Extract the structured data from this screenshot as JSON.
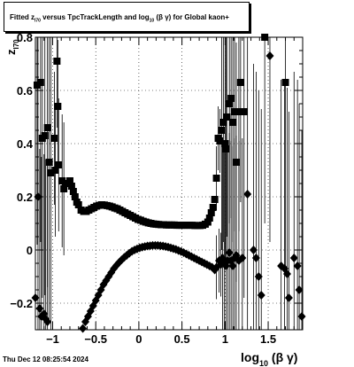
{
  "title": {
    "prefix": "Fitted  z",
    "z_sub": "I70",
    "middle": "  versus TpcTrackLength and log",
    "log_sub": "10",
    "suffix": " (β  γ) for Global kaon+"
  },
  "timestamp": "Thu Dec 12 08:25:54 2024",
  "chart_data": {
    "type": "scatter",
    "title": "Fitted z_I70 versus TpcTrackLength and log10(βγ) for Global kaon+",
    "xlabel": "log10 (β γ)",
    "ylabel": "z_I70",
    "xlim": [
      -1.2,
      1.9
    ],
    "ylim": [
      -0.3,
      0.8
    ],
    "grid": true,
    "x_ticks": [
      -1,
      -0.5,
      0,
      0.5,
      1,
      1.5
    ],
    "x_tick_labels": [
      "−1",
      "−0.5",
      "0",
      "0.5",
      "1",
      "1.5"
    ],
    "y_ticks": [
      -0.2,
      0,
      0.2,
      0.4,
      0.6,
      0.8
    ],
    "y_tick_labels": [
      "−0.2",
      "0",
      "0.2",
      "0.4",
      "0.6",
      "0.8"
    ],
    "series": [
      {
        "marker": "square",
        "color": "#000000",
        "points": [
          [
            -1.18,
            0.62
          ],
          [
            -1.14,
            0.63
          ],
          [
            -1.12,
            0.42
          ],
          [
            -1.09,
            0.43
          ],
          [
            -1.06,
            0.46
          ],
          [
            -1.04,
            0.33
          ],
          [
            -1.02,
            0.29
          ],
          [
            -0.98,
            0.42
          ],
          [
            -0.97,
            0.3
          ],
          [
            -0.95,
            0.71
          ],
          [
            -0.94,
            0.54
          ],
          [
            -0.93,
            0.32
          ],
          [
            -0.89,
            0.26
          ],
          [
            -0.87,
            0.23
          ],
          [
            -0.85,
            0.25
          ],
          [
            -0.8,
            0.26
          ],
          [
            -0.78,
            0.24
          ],
          [
            -0.76,
            0.22
          ],
          [
            -0.74,
            0.2
          ],
          [
            -0.72,
            0.18
          ],
          [
            -0.7,
            0.17
          ],
          [
            -0.67,
            0.15
          ],
          [
            -0.64,
            0.145
          ],
          [
            -0.61,
            0.145
          ],
          [
            -0.58,
            0.15
          ],
          [
            -0.55,
            0.155
          ],
          [
            -0.52,
            0.16
          ],
          [
            -0.49,
            0.165
          ],
          [
            -0.46,
            0.168
          ],
          [
            -0.43,
            0.17
          ],
          [
            -0.4,
            0.169
          ],
          [
            -0.37,
            0.167
          ],
          [
            -0.34,
            0.165
          ],
          [
            -0.31,
            0.162
          ],
          [
            -0.28,
            0.158
          ],
          [
            -0.25,
            0.155
          ],
          [
            -0.22,
            0.15
          ],
          [
            -0.19,
            0.145
          ],
          [
            -0.16,
            0.14
          ],
          [
            -0.13,
            0.135
          ],
          [
            -0.1,
            0.13
          ],
          [
            -0.07,
            0.125
          ],
          [
            -0.04,
            0.12
          ],
          [
            -0.01,
            0.115
          ],
          [
            0.02,
            0.112
          ],
          [
            0.05,
            0.108
          ],
          [
            0.08,
            0.105
          ],
          [
            0.11,
            0.102
          ],
          [
            0.14,
            0.1
          ],
          [
            0.17,
            0.098
          ],
          [
            0.2,
            0.097
          ],
          [
            0.23,
            0.096
          ],
          [
            0.26,
            0.095
          ],
          [
            0.29,
            0.095
          ],
          [
            0.32,
            0.094
          ],
          [
            0.35,
            0.094
          ],
          [
            0.38,
            0.094
          ],
          [
            0.41,
            0.094
          ],
          [
            0.44,
            0.093
          ],
          [
            0.47,
            0.093
          ],
          [
            0.5,
            0.093
          ],
          [
            0.53,
            0.093
          ],
          [
            0.56,
            0.093
          ],
          [
            0.59,
            0.093
          ],
          [
            0.62,
            0.093
          ],
          [
            0.65,
            0.092
          ],
          [
            0.68,
            0.092
          ],
          [
            0.71,
            0.092
          ],
          [
            0.74,
            0.093
          ],
          [
            0.77,
            0.097
          ],
          [
            0.8,
            0.105
          ],
          [
            0.82,
            0.12
          ],
          [
            0.84,
            0.14
          ],
          [
            0.86,
            0.16
          ],
          [
            0.88,
            0.19
          ],
          [
            0.9,
            0.27
          ],
          [
            0.92,
            0.42
          ],
          [
            0.94,
            0.41
          ],
          [
            0.96,
            0.45
          ],
          [
            0.98,
            0.48
          ],
          [
            1.0,
            0.4
          ],
          [
            1.01,
            0.38
          ],
          [
            1.02,
            0.5
          ],
          [
            1.05,
            0.55
          ],
          [
            1.07,
            0.57
          ],
          [
            1.09,
            0.48
          ],
          [
            1.11,
            0.52
          ],
          [
            1.13,
            0.33
          ],
          [
            1.16,
            0.52
          ],
          [
            1.18,
            0.63
          ],
          [
            1.22,
            0.52
          ],
          [
            1.46,
            0.8
          ],
          [
            1.7,
            0.63
          ]
        ]
      },
      {
        "marker": "diamond",
        "color": "#000000",
        "points": [
          [
            -1.2,
            -0.18
          ],
          [
            -1.17,
            0.2
          ],
          [
            -1.15,
            -0.22
          ],
          [
            -1.13,
            -0.25
          ],
          [
            -1.1,
            -0.24
          ],
          [
            -1.08,
            -0.26
          ],
          [
            -1.06,
            -0.27
          ],
          [
            -0.65,
            -0.295
          ],
          [
            -0.62,
            -0.27
          ],
          [
            -0.59,
            -0.25
          ],
          [
            -0.56,
            -0.23
          ],
          [
            -0.53,
            -0.21
          ],
          [
            -0.5,
            -0.19
          ],
          [
            -0.47,
            -0.17
          ],
          [
            -0.44,
            -0.15
          ],
          [
            -0.41,
            -0.13
          ],
          [
            -0.38,
            -0.115
          ],
          [
            -0.35,
            -0.1
          ],
          [
            -0.32,
            -0.085
          ],
          [
            -0.29,
            -0.07
          ],
          [
            -0.26,
            -0.058
          ],
          [
            -0.23,
            -0.047
          ],
          [
            -0.2,
            -0.037
          ],
          [
            -0.17,
            -0.028
          ],
          [
            -0.14,
            -0.02
          ],
          [
            -0.11,
            -0.012
          ],
          [
            -0.08,
            -0.005
          ],
          [
            -0.05,
            0.0
          ],
          [
            -0.02,
            0.004
          ],
          [
            0.01,
            0.008
          ],
          [
            0.04,
            0.011
          ],
          [
            0.07,
            0.013
          ],
          [
            0.1,
            0.015
          ],
          [
            0.13,
            0.016
          ],
          [
            0.16,
            0.017
          ],
          [
            0.19,
            0.017
          ],
          [
            0.22,
            0.017
          ],
          [
            0.25,
            0.016
          ],
          [
            0.28,
            0.015
          ],
          [
            0.31,
            0.013
          ],
          [
            0.34,
            0.011
          ],
          [
            0.37,
            0.008
          ],
          [
            0.4,
            0.005
          ],
          [
            0.43,
            0.002
          ],
          [
            0.46,
            -0.002
          ],
          [
            0.49,
            -0.006
          ],
          [
            0.52,
            -0.01
          ],
          [
            0.55,
            -0.015
          ],
          [
            0.58,
            -0.02
          ],
          [
            0.61,
            -0.025
          ],
          [
            0.64,
            -0.03
          ],
          [
            0.67,
            -0.035
          ],
          [
            0.7,
            -0.04
          ],
          [
            0.73,
            -0.045
          ],
          [
            0.76,
            -0.05
          ],
          [
            0.79,
            -0.055
          ],
          [
            0.82,
            -0.06
          ],
          [
            0.85,
            -0.065
          ],
          [
            0.88,
            -0.075
          ],
          [
            0.9,
            -0.065
          ],
          [
            0.93,
            -0.04
          ],
          [
            0.95,
            -0.055
          ],
          [
            0.97,
            -0.03
          ],
          [
            0.99,
            -0.05
          ],
          [
            1.01,
            -0.06
          ],
          [
            1.03,
            -0.04
          ],
          [
            1.05,
            -0.01
          ],
          [
            1.07,
            -0.04
          ],
          [
            1.09,
            -0.06
          ],
          [
            1.11,
            -0.03
          ],
          [
            1.13,
            -0.02
          ],
          [
            1.16,
            -0.04
          ],
          [
            1.2,
            -0.03
          ],
          [
            1.26,
            0.21
          ],
          [
            1.33,
            0.0
          ],
          [
            1.36,
            -0.03
          ],
          [
            1.39,
            -0.1
          ],
          [
            1.42,
            -0.17
          ],
          [
            1.52,
            0.73
          ],
          [
            1.65,
            -0.06
          ],
          [
            1.69,
            -0.07
          ],
          [
            1.72,
            -0.09
          ],
          [
            1.74,
            -0.18
          ],
          [
            1.8,
            -0.03
          ],
          [
            1.84,
            -0.06
          ],
          [
            1.86,
            -0.15
          ],
          [
            1.89,
            -0.25
          ]
        ]
      }
    ]
  }
}
